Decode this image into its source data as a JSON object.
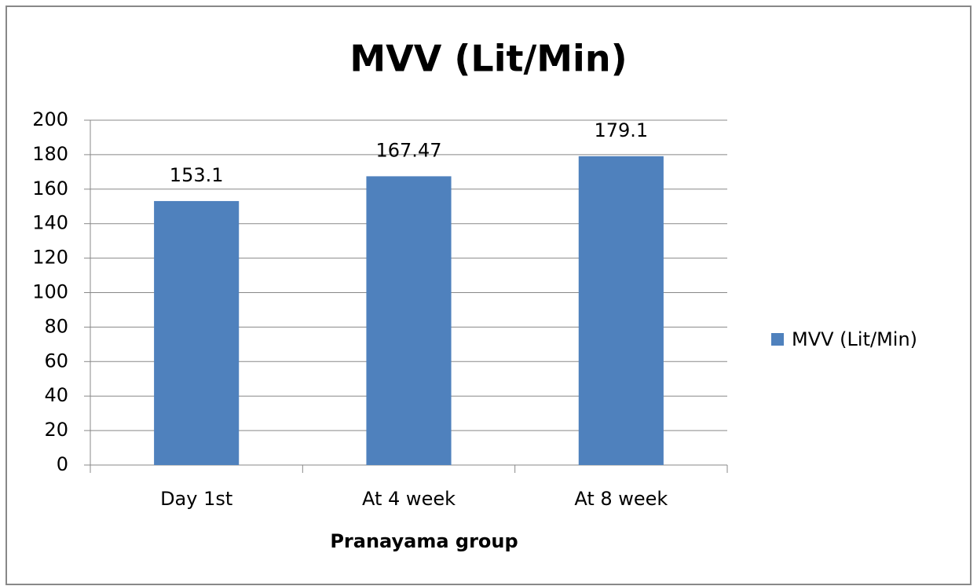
{
  "chart_data": {
    "type": "bar",
    "title": "MVV (Lit/Min)",
    "x_label": "Pranayama group",
    "categories": [
      "Day 1st",
      "At 4 week",
      "At 8 week"
    ],
    "series": [
      {
        "name": "MVV (Lit/Min)",
        "color": "#4f81bd",
        "values": [
          153.1,
          167.47,
          179.1
        ]
      }
    ],
    "ylim": [
      0,
      200
    ],
    "yticks": [
      0,
      20,
      40,
      60,
      80,
      100,
      120,
      140,
      160,
      180,
      200
    ],
    "grid": true,
    "legend": "right"
  }
}
